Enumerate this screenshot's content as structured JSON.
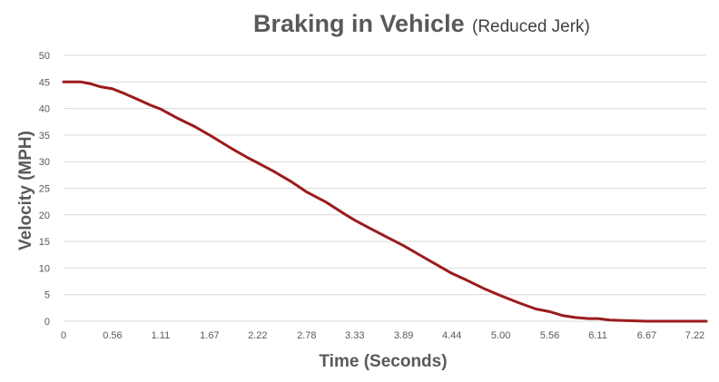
{
  "chart_data": {
    "type": "line",
    "title": "Braking in Vehicle",
    "subtitle": "(Reduced Jerk)",
    "xlabel": "Time (Seconds)",
    "ylabel": "Velocity (MPH)",
    "ylim": [
      0,
      50
    ],
    "xlim": [
      0,
      7.35
    ],
    "x_ticks": [
      "0",
      "0.56",
      "1.11",
      "1.67",
      "2.22",
      "2.78",
      "3.33",
      "3.89",
      "4.44",
      "5.00",
      "5.56",
      "6.11",
      "6.67",
      "7.22"
    ],
    "y_ticks": [
      "0",
      "5",
      "10",
      "15",
      "20",
      "25",
      "30",
      "35",
      "40",
      "45",
      "50"
    ],
    "grid": true,
    "legend": "none",
    "colors": {
      "line": "#9b1b1b",
      "grid": "#d9d9d9",
      "text": "#595959"
    },
    "series": [
      {
        "x": [
          0,
          0.2,
          0.3,
          0.42,
          0.56,
          0.7,
          0.85,
          1.0,
          1.11,
          1.3,
          1.5,
          1.67,
          1.9,
          2.1,
          2.22,
          2.4,
          2.6,
          2.78,
          3.0,
          3.2,
          3.33,
          3.5,
          3.7,
          3.89,
          4.1,
          4.3,
          4.44,
          4.6,
          4.8,
          5.0,
          5.2,
          5.4,
          5.56,
          5.7,
          5.85,
          6.0,
          6.11,
          6.25,
          6.45,
          6.67,
          7.0,
          7.35
        ],
        "values": [
          45,
          45,
          44.7,
          44.1,
          43.7,
          42.8,
          41.7,
          40.6,
          39.9,
          38.2,
          36.6,
          35.0,
          32.7,
          30.8,
          29.8,
          28.2,
          26.3,
          24.3,
          22.4,
          20.3,
          19.0,
          17.5,
          15.8,
          14.2,
          12.2,
          10.3,
          9.0,
          7.8,
          6.2,
          4.8,
          3.5,
          2.3,
          1.8,
          1.1,
          0.7,
          0.5,
          0.5,
          0.2,
          0.1,
          0,
          0,
          0
        ]
      }
    ]
  }
}
